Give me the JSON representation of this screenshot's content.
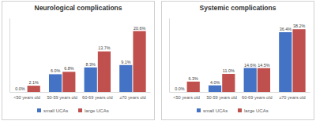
{
  "chart_data": [
    {
      "type": "bar",
      "title": "Neurological complications",
      "categories": [
        "<50 years old",
        "50-59 years old",
        "60-69 years old",
        "≥70 years old"
      ],
      "series": [
        {
          "name": "small UCAs",
          "color": "#4472c4",
          "values": [
            0.0,
            6.0,
            8.3,
            9.1
          ],
          "value_labels": [
            "0.0%",
            "6.0%",
            "8.3%",
            "9.1%"
          ]
        },
        {
          "name": "large UCAs",
          "color": "#c0504d",
          "values": [
            2.1,
            6.8,
            13.7,
            20.6
          ],
          "value_labels": [
            "2.1%",
            "6.8%",
            "13.7%",
            "20.6%"
          ]
        }
      ],
      "ylim": [
        0,
        25
      ],
      "data_labels": true,
      "tick_labels": "x",
      "legend": "bottom"
    },
    {
      "type": "bar",
      "title": "Systemic complications",
      "categories": [
        "<50 years old",
        "50-59 years old",
        "60-69 years old",
        "≥70 years old"
      ],
      "series": [
        {
          "name": "small UCAs",
          "color": "#4472c4",
          "values": [
            0.0,
            4.0,
            14.6,
            36.4
          ],
          "value_labels": [
            "0.0%",
            "4.0%",
            "14.6%",
            "36.4%"
          ]
        },
        {
          "name": "large UCAs",
          "color": "#c0504d",
          "values": [
            6.3,
            11.0,
            14.5,
            38.2
          ],
          "value_labels": [
            "6.3%",
            "11.0%",
            "14.5%",
            "38.2%"
          ]
        }
      ],
      "ylim": [
        0,
        45
      ],
      "data_labels": true,
      "tick_labels": "x",
      "legend": "bottom"
    }
  ]
}
